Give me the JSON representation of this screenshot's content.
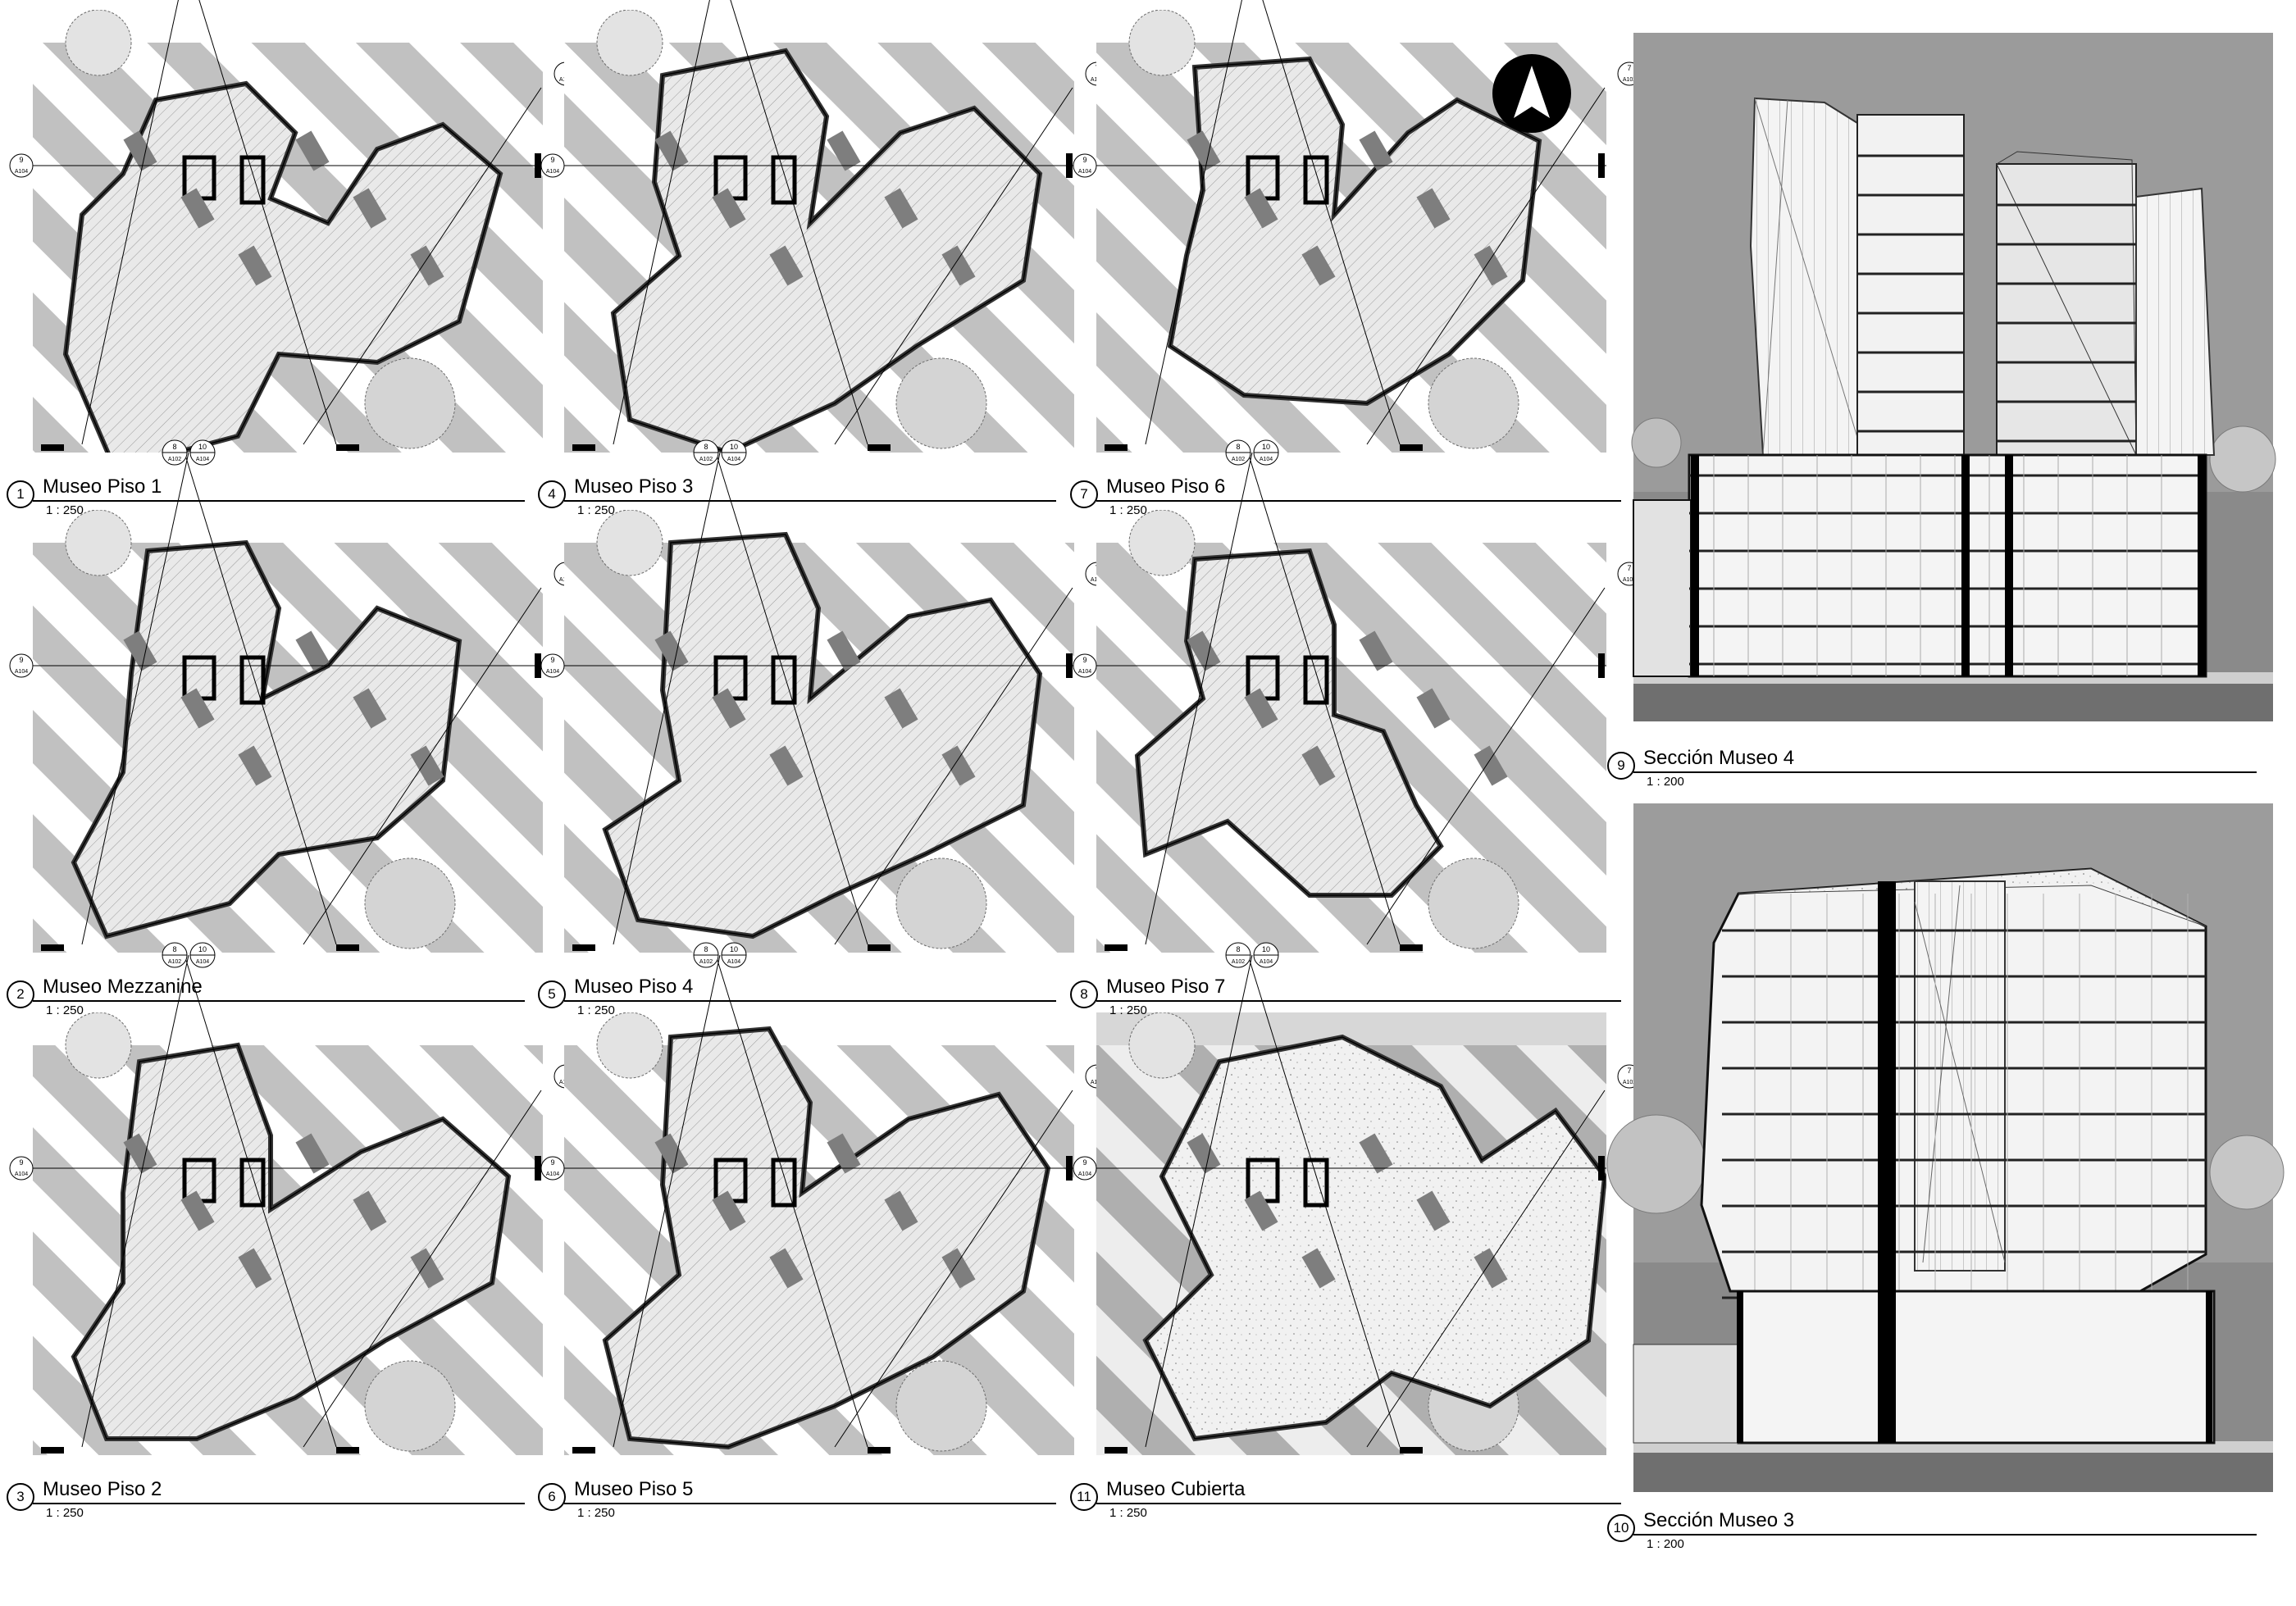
{
  "sheet": {
    "north_arrow": "north-arrow",
    "plans": [
      {
        "num": "1",
        "title": "Museo Piso 1",
        "scale": "1 : 250"
      },
      {
        "num": "4",
        "title": "Museo Piso 3",
        "scale": "1 : 250"
      },
      {
        "num": "7",
        "title": "Museo Piso 6",
        "scale": "1 : 250"
      },
      {
        "num": "2",
        "title": "Museo Mezzanine",
        "scale": "1 : 250"
      },
      {
        "num": "5",
        "title": "Museo Piso 4",
        "scale": "1 : 250"
      },
      {
        "num": "8",
        "title": "Museo Piso 7",
        "scale": "1 : 250"
      },
      {
        "num": "3",
        "title": "Museo Piso 2",
        "scale": "1 : 250"
      },
      {
        "num": "6",
        "title": "Museo Piso 5",
        "scale": "1 : 250"
      },
      {
        "num": "11",
        "title": "Museo Cubierta",
        "scale": "1 : 250"
      }
    ],
    "sections": [
      {
        "num": "9",
        "title": "Sección Museo 4",
        "scale": "1 : 200"
      },
      {
        "num": "10",
        "title": "Sección Museo 3",
        "scale": "1 : 200"
      }
    ],
    "markers": {
      "top_a": "8",
      "top_b": "10",
      "ref_a": "A102",
      "ref_b": "A104",
      "side_num": "7",
      "side_ref": "A102",
      "left_num": "9",
      "left_ref": "A104"
    }
  }
}
